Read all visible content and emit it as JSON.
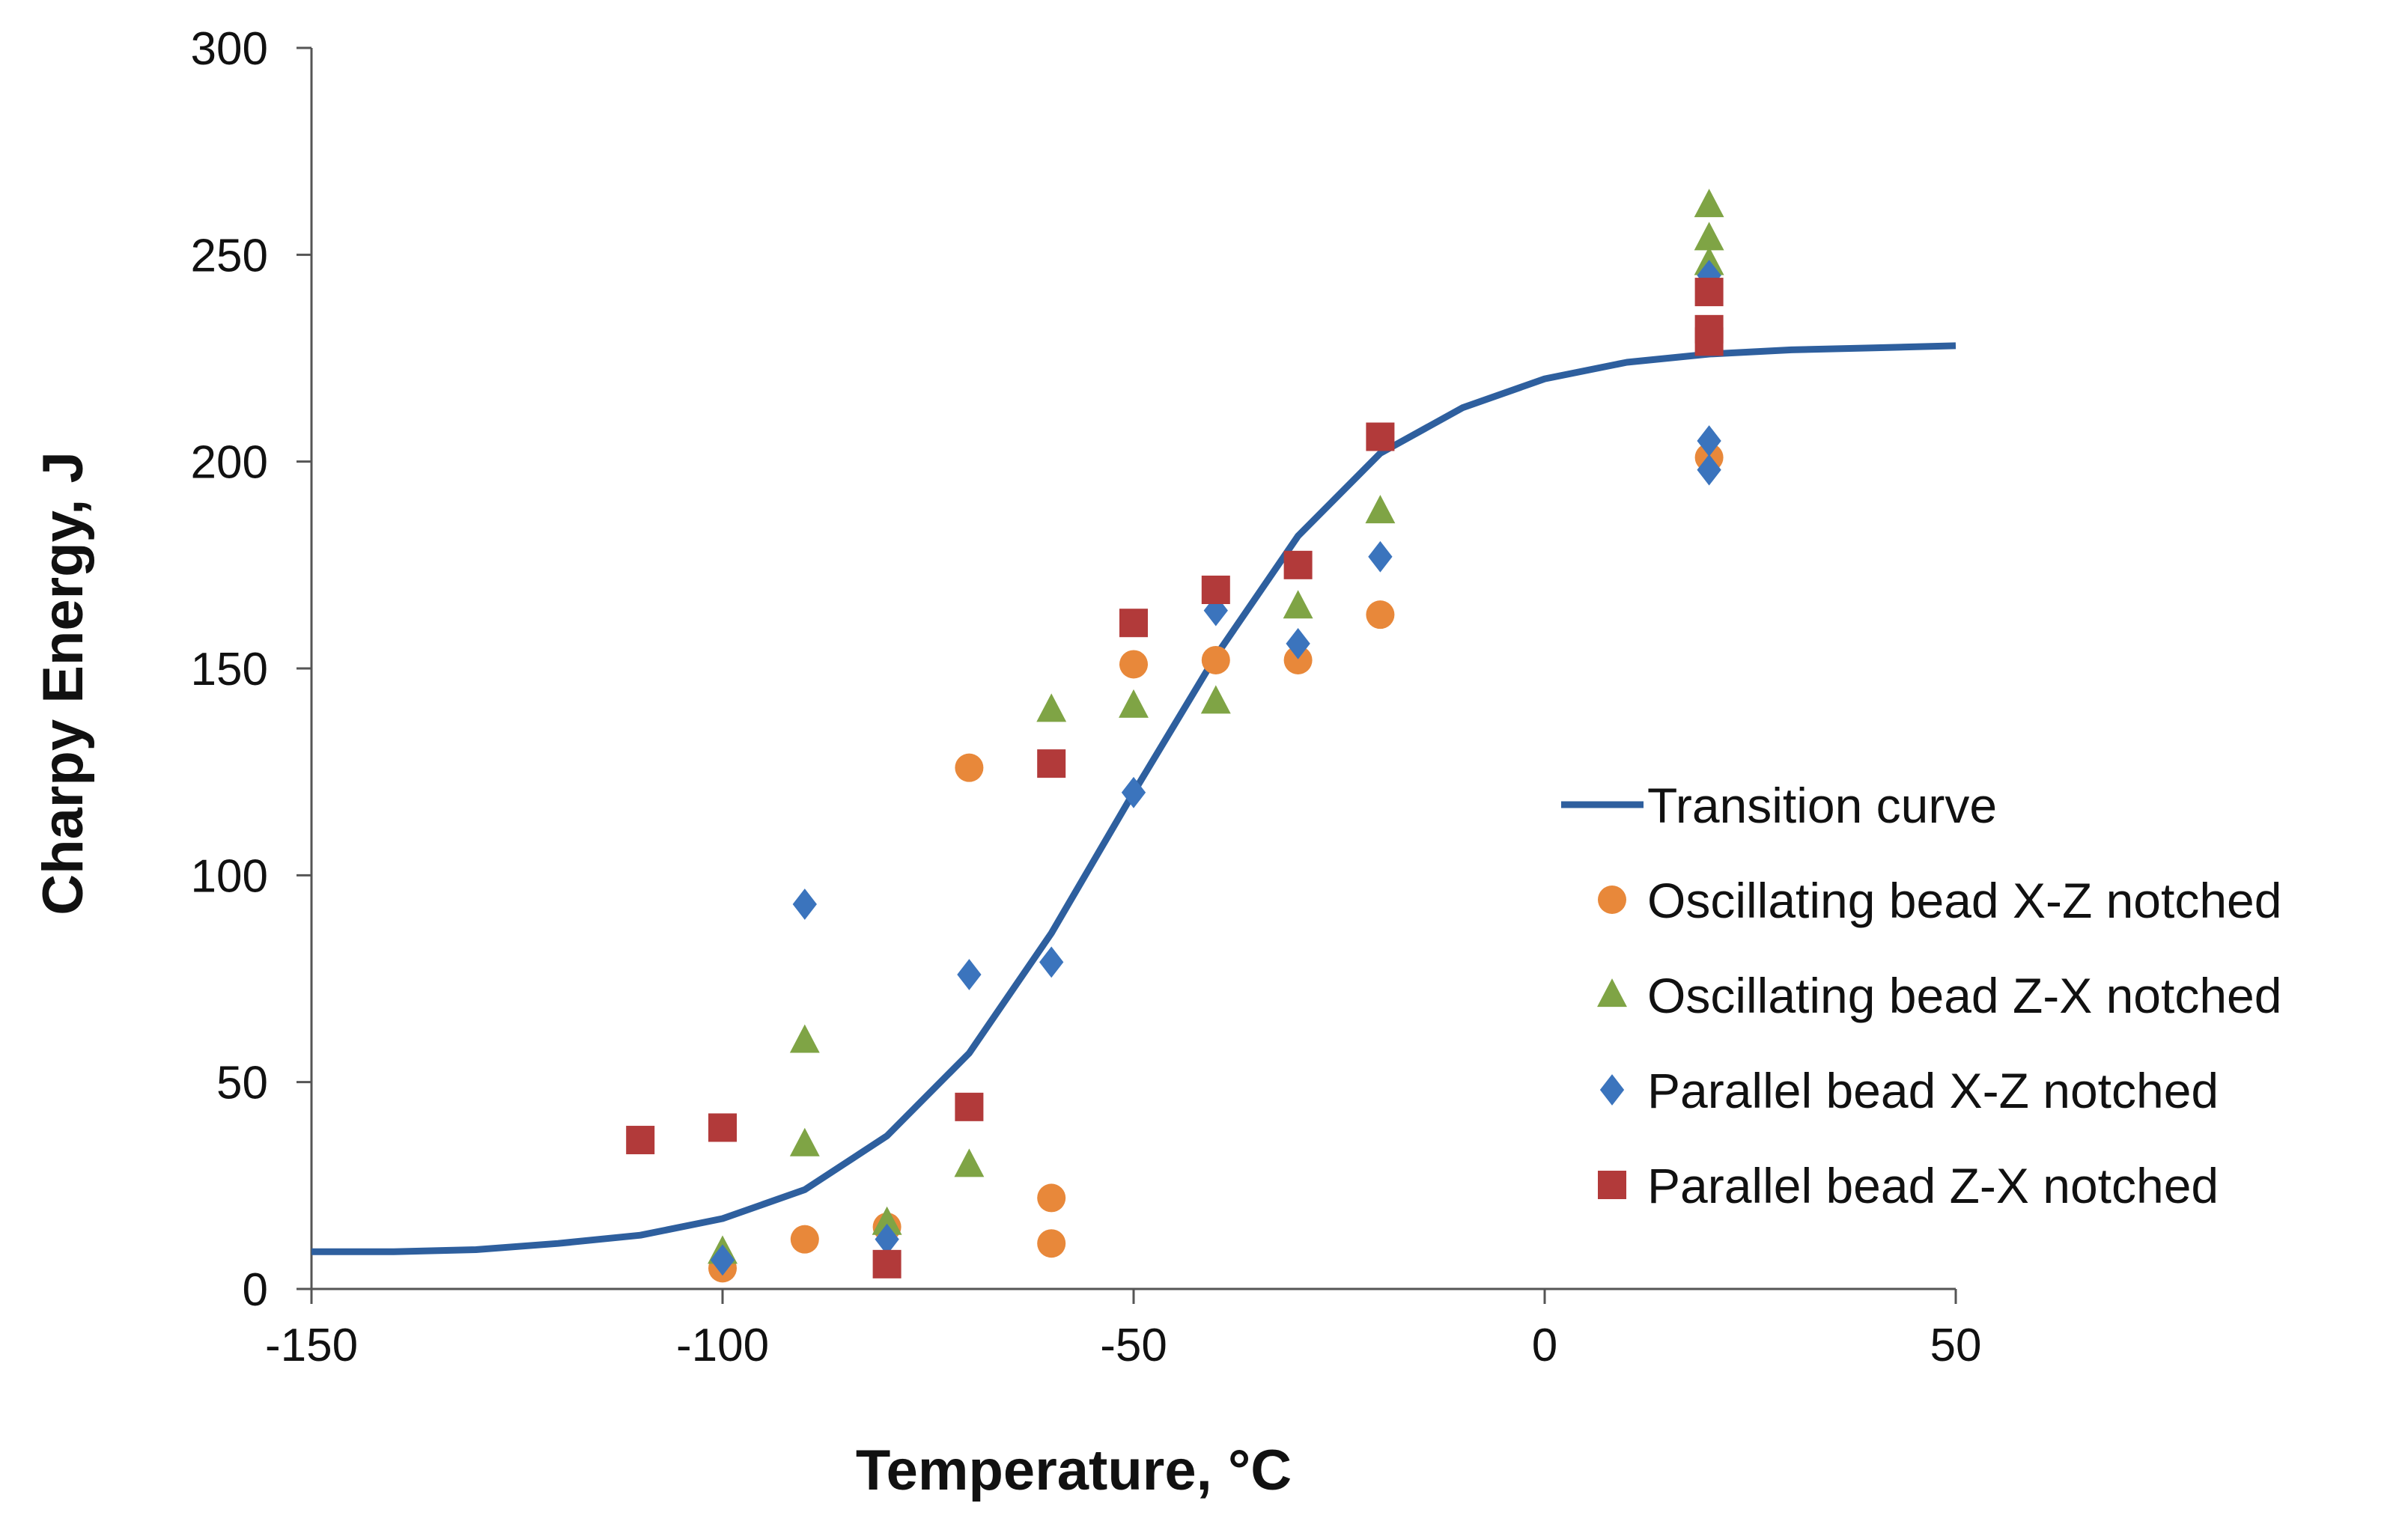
{
  "chart_data": {
    "type": "scatter",
    "title": "",
    "xlabel": "Temperature, °C",
    "ylabel": "Charpy Energy, J",
    "xlim": [
      -150,
      50
    ],
    "ylim": [
      0,
      300
    ],
    "x_ticks": [
      "-150",
      "-100",
      "-50",
      "0",
      "50"
    ],
    "y_ticks": [
      "0",
      "50",
      "100",
      "150",
      "200",
      "250",
      "300"
    ],
    "grid": false,
    "legend_position": "right",
    "series": [
      {
        "name": "Transition curve",
        "kind": "line",
        "color": "#2e5f9e",
        "points": [
          [
            -150,
            9
          ],
          [
            -140,
            9
          ],
          [
            -130,
            9.5
          ],
          [
            -120,
            11
          ],
          [
            -110,
            13
          ],
          [
            -100,
            17
          ],
          [
            -90,
            24
          ],
          [
            -80,
            37
          ],
          [
            -70,
            57
          ],
          [
            -60,
            86
          ],
          [
            -50,
            120
          ],
          [
            -40,
            153
          ],
          [
            -30,
            182
          ],
          [
            -20,
            202
          ],
          [
            -10,
            213
          ],
          [
            0,
            220
          ],
          [
            10,
            224
          ],
          [
            20,
            226
          ],
          [
            30,
            227
          ],
          [
            40,
            227.5
          ],
          [
            50,
            228
          ]
        ]
      },
      {
        "name": "Oscillating bead X-Z notched",
        "kind": "scatter",
        "marker": "circle",
        "color": "#e8883a",
        "points": [
          [
            -100,
            5
          ],
          [
            -90,
            12
          ],
          [
            -80,
            15
          ],
          [
            -70,
            126
          ],
          [
            -60,
            22
          ],
          [
            -60,
            11
          ],
          [
            -50,
            151
          ],
          [
            -40,
            152
          ],
          [
            -30,
            152
          ],
          [
            -20,
            163
          ],
          [
            20,
            201
          ]
        ]
      },
      {
        "name": "Oscillating bead Z-X notched",
        "kind": "scatter",
        "marker": "triangle",
        "color": "#7fa445",
        "points": [
          [
            -100,
            9
          ],
          [
            -90,
            60
          ],
          [
            -90,
            35
          ],
          [
            -80,
            16
          ],
          [
            -70,
            30
          ],
          [
            -60,
            140
          ],
          [
            -50,
            141
          ],
          [
            -40,
            142
          ],
          [
            -30,
            165
          ],
          [
            -20,
            188
          ],
          [
            20,
            262
          ],
          [
            20,
            254
          ],
          [
            20,
            248
          ]
        ]
      },
      {
        "name": "Parallel bead X-Z notched",
        "kind": "scatter",
        "marker": "diamond",
        "color": "#3b74bd",
        "points": [
          [
            -100,
            7
          ],
          [
            -90,
            93
          ],
          [
            -80,
            12
          ],
          [
            -70,
            76
          ],
          [
            -60,
            79
          ],
          [
            -50,
            120
          ],
          [
            -40,
            164
          ],
          [
            -30,
            156
          ],
          [
            -20,
            177
          ],
          [
            20,
            245
          ],
          [
            20,
            205
          ],
          [
            20,
            198
          ]
        ]
      },
      {
        "name": "Parallel bead Z-X notched",
        "kind": "scatter",
        "marker": "square",
        "color": "#b23a3a",
        "points": [
          [
            -110,
            36
          ],
          [
            -100,
            39
          ],
          [
            -80,
            6
          ],
          [
            -70,
            44
          ],
          [
            -60,
            127
          ],
          [
            -50,
            161
          ],
          [
            -40,
            169
          ],
          [
            -30,
            175
          ],
          [
            -20,
            206
          ],
          [
            20,
            241
          ],
          [
            20,
            232
          ],
          [
            20,
            229
          ]
        ]
      }
    ]
  }
}
